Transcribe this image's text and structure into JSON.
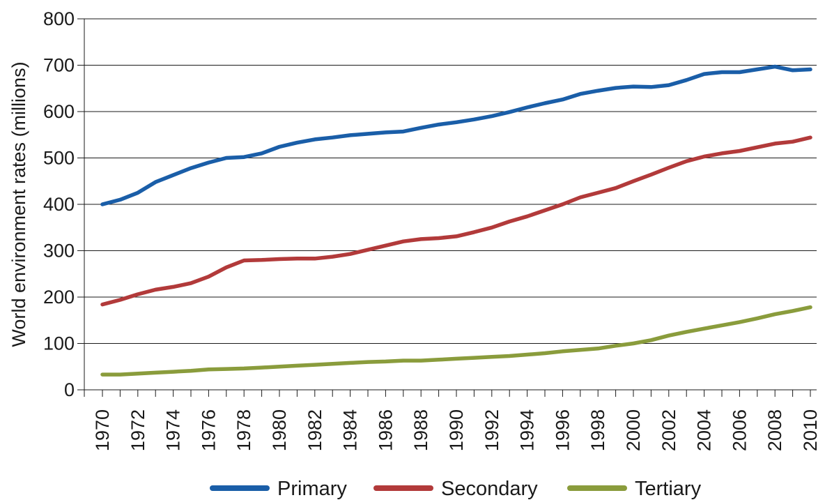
{
  "chart_data": {
    "type": "line",
    "title": "",
    "xlabel": "",
    "ylabel": "World environment rates (millions)",
    "ylim": [
      0,
      800
    ],
    "yticks": [
      0,
      100,
      200,
      300,
      400,
      500,
      600,
      700,
      800
    ],
    "xlim": [
      1970,
      2010
    ],
    "xticks": [
      1970,
      1972,
      1974,
      1976,
      1978,
      1980,
      1982,
      1984,
      1986,
      1988,
      1990,
      1992,
      1994,
      1996,
      1998,
      2000,
      2002,
      2004,
      2006,
      2008,
      2010
    ],
    "grid": "horizontal",
    "legend_position": "bottom",
    "x": [
      1970,
      1971,
      1972,
      1973,
      1974,
      1975,
      1976,
      1977,
      1978,
      1979,
      1980,
      1981,
      1982,
      1983,
      1984,
      1985,
      1986,
      1987,
      1988,
      1989,
      1990,
      1991,
      1992,
      1993,
      1994,
      1995,
      1996,
      1997,
      1998,
      1999,
      2000,
      2001,
      2002,
      2003,
      2004,
      2005,
      2006,
      2007,
      2008,
      2009,
      2010
    ],
    "series": [
      {
        "name": "Primary",
        "color": "#1a5ea8",
        "values": [
          400,
          410,
          425,
          448,
          463,
          478,
          490,
          500,
          502,
          510,
          524,
          533,
          540,
          544,
          549,
          552,
          555,
          557,
          565,
          572,
          577,
          583,
          590,
          599,
          609,
          618,
          626,
          638,
          645,
          651,
          654,
          653,
          657,
          668,
          681,
          685,
          685,
          691,
          697,
          689,
          691
        ]
      },
      {
        "name": "Secondary",
        "color": "#b23a3a",
        "values": [
          184,
          194,
          206,
          216,
          222,
          230,
          244,
          264,
          279,
          280,
          282,
          283,
          283,
          287,
          293,
          302,
          311,
          320,
          325,
          327,
          331,
          340,
          350,
          363,
          374,
          387,
          400,
          415,
          425,
          435,
          450,
          464,
          479,
          493,
          503,
          510,
          515,
          523,
          531,
          535,
          544
        ]
      },
      {
        "name": "Tertiary",
        "color": "#8a9c3c",
        "values": [
          33,
          33,
          35,
          37,
          39,
          41,
          44,
          45,
          46,
          48,
          50,
          52,
          54,
          56,
          58,
          60,
          61,
          63,
          63,
          65,
          67,
          69,
          71,
          73,
          76,
          79,
          83,
          86,
          89,
          95,
          100,
          107,
          117,
          125,
          132,
          139,
          146,
          154,
          163,
          170,
          178
        ]
      }
    ]
  }
}
